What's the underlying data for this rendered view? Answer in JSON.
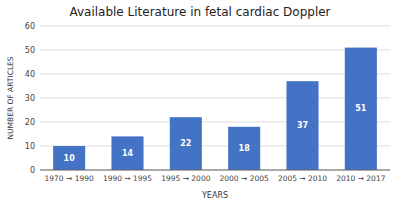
{
  "chart_data": {
    "type": "bar",
    "title": "Available Literature in fetal cardiac Doppler",
    "xlabel": "YEARS",
    "ylabel": "NUMBER OF ARTICLES",
    "categories": [
      "1970 → 1990",
      "1990 → 1995",
      "1995 → 2000",
      "2000 → 2005",
      "2005 → 2010",
      "2010 → 2017"
    ],
    "values": [
      10,
      14,
      22,
      18,
      37,
      51
    ],
    "color": "#4472C4",
    "ylim": [
      0,
      60
    ],
    "yticks": [
      0,
      10,
      20,
      30,
      40,
      50,
      60
    ],
    "grid": true,
    "data_labels": true
  }
}
